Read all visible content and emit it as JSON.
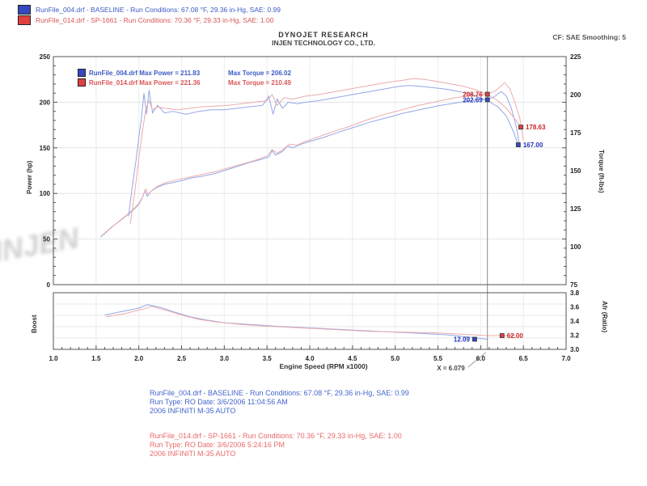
{
  "header": {
    "legend_top": [
      {
        "color": "#3448c0",
        "label": "RunFile_004.drf - BASELINE  -  Run Conditions: 67.08 °F, 29.36 in-Hg, SAE: 0.99"
      },
      {
        "color": "#e04040",
        "label": "RunFile_014.drf - SP-1661  -  Run Conditions: 70.36 °F, 29.33 in-Hg, SAE: 1.00"
      }
    ],
    "title1": "DYNOJET RESEARCH",
    "title2": "INJEN TECHNOLOGY CO., LTD.",
    "right": "CF: SAE   Smoothing: 5"
  },
  "chart_data": [
    {
      "type": "line",
      "title": "",
      "xlabel": "Engine Speed (RPM x1000)",
      "xlim": [
        1.0,
        7.0
      ],
      "x_ticks": [
        "1.0",
        "1.5",
        "2.0",
        "2.5",
        "3.0",
        "3.5",
        "4.0",
        "4.5",
        "5.0",
        "5.5",
        "6.0",
        "6.5",
        "7.0"
      ],
      "left_axis": {
        "label": "Power (hp)",
        "lim": [
          0,
          250
        ],
        "ticks": [
          250,
          200,
          150,
          100,
          50,
          0
        ]
      },
      "right_axis": {
        "label": "Torque (ft-lbs)",
        "lim": [
          75,
          225
        ],
        "ticks": [
          225,
          200,
          175,
          150,
          125,
          100,
          75
        ]
      },
      "grid": true,
      "legend_position": "top-left",
      "legend": [
        {
          "color": "#3448c0",
          "text1": "RunFile_004.drf Max Power = 211.83",
          "text2": "Max Torque = 206.02",
          "max_power": 211.83,
          "max_torque": 206.02,
          "tone": "blue"
        },
        {
          "color": "#e04040",
          "text1": "RunFile_014.drf Max Power = 221.36",
          "text2": "Max Torque = 210.49",
          "max_power": 221.36,
          "max_torque": 210.49,
          "tone": "red"
        }
      ],
      "cursor": {
        "x": 6.079,
        "label": "X = 6.079"
      },
      "cursor_values": [
        {
          "label": "208.76",
          "value": 208.76,
          "axis": "power",
          "color": "#cc2222",
          "fill": "#e04040"
        },
        {
          "label": "202.69",
          "value": 202.69,
          "axis": "power",
          "color": "#2233bb",
          "fill": "#3448c0"
        }
      ],
      "end_values": [
        {
          "label": "178.63",
          "value": 178.63,
          "rpm": 6.47,
          "axis": "torque",
          "color": "#cc2222",
          "fill": "#e04040"
        },
        {
          "label": "167.00",
          "value": 167.0,
          "rpm": 6.44,
          "axis": "torque",
          "color": "#2233bb",
          "fill": "#3448c0"
        }
      ],
      "series": [
        {
          "name": "power-baseline",
          "axis": "power",
          "color": "#93a7e7",
          "points": [
            [
              1.55,
              52
            ],
            [
              1.62,
              58
            ],
            [
              1.68,
              63
            ],
            [
              1.75,
              68
            ],
            [
              1.82,
              73
            ],
            [
              1.9,
              79
            ],
            [
              1.96,
              84
            ],
            [
              2.0,
              88
            ],
            [
              2.04,
              95
            ],
            [
              2.07,
              103
            ],
            [
              2.1,
              97
            ],
            [
              2.14,
              102
            ],
            [
              2.2,
              106
            ],
            [
              2.3,
              110
            ],
            [
              2.4,
              112
            ],
            [
              2.5,
              114
            ],
            [
              2.62,
              117
            ],
            [
              2.75,
              119
            ],
            [
              2.9,
              122
            ],
            [
              3.0,
              125
            ],
            [
              3.1,
              128
            ],
            [
              3.2,
              131
            ],
            [
              3.3,
              134
            ],
            [
              3.42,
              137
            ],
            [
              3.52,
              140
            ],
            [
              3.56,
              147
            ],
            [
              3.6,
              142
            ],
            [
              3.68,
              146
            ],
            [
              3.74,
              152
            ],
            [
              3.8,
              150
            ],
            [
              3.9,
              154
            ],
            [
              4.0,
              157
            ],
            [
              4.15,
              161
            ],
            [
              4.3,
              166
            ],
            [
              4.5,
              172
            ],
            [
              4.7,
              178
            ],
            [
              4.9,
              183
            ],
            [
              5.1,
              188
            ],
            [
              5.3,
              192
            ],
            [
              5.5,
              196
            ],
            [
              5.7,
              199
            ],
            [
              5.9,
              202
            ],
            [
              6.0,
              203
            ],
            [
              6.079,
              202.7
            ],
            [
              6.16,
              206
            ],
            [
              6.24,
              211.8
            ],
            [
              6.3,
              207
            ],
            [
              6.36,
              193
            ],
            [
              6.42,
              172
            ],
            [
              6.46,
              150
            ]
          ]
        },
        {
          "name": "power-sp1661",
          "axis": "power",
          "color": "#ecabab",
          "points": [
            [
              1.58,
              54
            ],
            [
              1.65,
              60
            ],
            [
              1.72,
              66
            ],
            [
              1.8,
              72
            ],
            [
              1.88,
              78
            ],
            [
              1.95,
              84
            ],
            [
              2.0,
              89
            ],
            [
              2.05,
              97
            ],
            [
              2.08,
              105
            ],
            [
              2.11,
              99
            ],
            [
              2.16,
              104
            ],
            [
              2.22,
              108
            ],
            [
              2.32,
              112
            ],
            [
              2.45,
              115
            ],
            [
              2.6,
              118
            ],
            [
              2.75,
              121
            ],
            [
              2.9,
              124
            ],
            [
              3.05,
              128
            ],
            [
              3.2,
              132
            ],
            [
              3.35,
              136
            ],
            [
              3.5,
              141
            ],
            [
              3.56,
              148
            ],
            [
              3.62,
              144
            ],
            [
              3.7,
              149
            ],
            [
              3.76,
              154
            ],
            [
              3.85,
              153
            ],
            [
              3.95,
              157
            ],
            [
              4.1,
              162
            ],
            [
              4.25,
              167
            ],
            [
              4.45,
              173
            ],
            [
              4.65,
              180
            ],
            [
              4.85,
              186
            ],
            [
              5.05,
              191
            ],
            [
              5.25,
              196
            ],
            [
              5.45,
              200
            ],
            [
              5.65,
              204
            ],
            [
              5.85,
              207
            ],
            [
              6.0,
              208
            ],
            [
              6.079,
              208.8
            ],
            [
              6.18,
              213
            ],
            [
              6.28,
              221.4
            ],
            [
              6.34,
              215
            ],
            [
              6.4,
              200
            ],
            [
              6.46,
              182
            ],
            [
              6.5,
              158
            ]
          ]
        },
        {
          "name": "torque-baseline",
          "axis": "torque",
          "color": "#93a7e7",
          "points": [
            [
              1.88,
              120
            ],
            [
              1.92,
              138
            ],
            [
              1.97,
              158
            ],
            [
              2.0,
              172
            ],
            [
              2.03,
              184
            ],
            [
              2.06,
              201
            ],
            [
              2.09,
              187
            ],
            [
              2.12,
              203
            ],
            [
              2.16,
              188
            ],
            [
              2.22,
              193
            ],
            [
              2.3,
              188
            ],
            [
              2.4,
              189
            ],
            [
              2.55,
              187
            ],
            [
              2.7,
              189
            ],
            [
              2.85,
              190
            ],
            [
              3.0,
              190
            ],
            [
              3.15,
              191
            ],
            [
              3.3,
              192
            ],
            [
              3.45,
              193
            ],
            [
              3.52,
              199
            ],
            [
              3.57,
              187
            ],
            [
              3.62,
              197
            ],
            [
              3.68,
              191
            ],
            [
              3.75,
              195
            ],
            [
              3.85,
              194
            ],
            [
              3.95,
              195
            ],
            [
              4.1,
              196
            ],
            [
              4.3,
              198
            ],
            [
              4.5,
              200
            ],
            [
              4.7,
              202
            ],
            [
              4.9,
              204
            ],
            [
              5.05,
              205.5
            ],
            [
              5.15,
              206
            ],
            [
              5.3,
              205.5
            ],
            [
              5.45,
              204.5
            ],
            [
              5.6,
              203.5
            ],
            [
              5.75,
              202
            ],
            [
              5.9,
              200
            ],
            [
              6.079,
              196
            ],
            [
              6.2,
              192
            ],
            [
              6.3,
              186
            ],
            [
              6.38,
              176
            ],
            [
              6.44,
              167
            ]
          ]
        },
        {
          "name": "torque-sp1661",
          "axis": "torque",
          "color": "#ecabab",
          "points": [
            [
              1.9,
              115
            ],
            [
              1.95,
              135
            ],
            [
              2.0,
              158
            ],
            [
              2.04,
              175
            ],
            [
              2.08,
              190
            ],
            [
              2.12,
              196
            ],
            [
              2.16,
              190
            ],
            [
              2.22,
              192
            ],
            [
              2.3,
              191
            ],
            [
              2.45,
              190
            ],
            [
              2.6,
              191
            ],
            [
              2.75,
              192
            ],
            [
              2.9,
              192.5
            ],
            [
              3.05,
              193
            ],
            [
              3.2,
              194
            ],
            [
              3.35,
              195
            ],
            [
              3.5,
              196
            ],
            [
              3.56,
              200
            ],
            [
              3.62,
              193
            ],
            [
              3.7,
              198
            ],
            [
              3.8,
              197
            ],
            [
              3.95,
              199
            ],
            [
              4.1,
              200
            ],
            [
              4.3,
              202
            ],
            [
              4.5,
              204
            ],
            [
              4.7,
              206
            ],
            [
              4.9,
              208
            ],
            [
              5.1,
              209.5
            ],
            [
              5.2,
              210.5
            ],
            [
              5.35,
              210
            ],
            [
              5.5,
              208.5
            ],
            [
              5.65,
              207
            ],
            [
              5.8,
              205.5
            ],
            [
              5.95,
              203
            ],
            [
              6.079,
              200
            ],
            [
              6.2,
              196
            ],
            [
              6.3,
              191
            ],
            [
              6.4,
              184
            ],
            [
              6.47,
              178.6
            ]
          ]
        }
      ]
    },
    {
      "type": "line",
      "left_label": "Boost",
      "right_label": "Afr (Ratio)",
      "right_ticks": [
        "3.8",
        "3.6",
        "3.4",
        "3.2",
        "3.0"
      ],
      "lim": [
        11.5,
        14.8
      ],
      "labels": [
        {
          "label": "12.09",
          "value": 12.09,
          "rpm": 5.93,
          "side": "left",
          "color": "#2233bb",
          "fill": "#3448c0"
        },
        {
          "label": "62.00",
          "value": 12.3,
          "rpm": 6.25,
          "side": "right",
          "color": "#cc2222",
          "fill": "#e04040"
        }
      ],
      "series": [
        {
          "name": "afr-baseline",
          "color": "#93a7e7",
          "points": [
            [
              1.6,
              13.5
            ],
            [
              1.8,
              13.7
            ],
            [
              2.0,
              13.9
            ],
            [
              2.1,
              14.1
            ],
            [
              2.25,
              13.95
            ],
            [
              2.4,
              13.7
            ],
            [
              2.6,
              13.4
            ],
            [
              2.8,
              13.2
            ],
            [
              3.0,
              13.05
            ],
            [
              3.3,
              12.95
            ],
            [
              3.6,
              12.85
            ],
            [
              4.0,
              12.75
            ],
            [
              4.4,
              12.65
            ],
            [
              4.8,
              12.55
            ],
            [
              5.2,
              12.45
            ],
            [
              5.6,
              12.35
            ],
            [
              5.9,
              12.2
            ],
            [
              6.079,
              12.09
            ]
          ]
        },
        {
          "name": "afr-sp1661",
          "color": "#ecabab",
          "points": [
            [
              1.62,
              13.4
            ],
            [
              1.85,
              13.6
            ],
            [
              2.05,
              13.85
            ],
            [
              2.15,
              14.0
            ],
            [
              2.3,
              13.8
            ],
            [
              2.5,
              13.5
            ],
            [
              2.7,
              13.25
            ],
            [
              2.9,
              13.1
            ],
            [
              3.2,
              12.95
            ],
            [
              3.5,
              12.85
            ],
            [
              3.9,
              12.75
            ],
            [
              4.3,
              12.65
            ],
            [
              4.7,
              12.55
            ],
            [
              5.1,
              12.5
            ],
            [
              5.5,
              12.45
            ],
            [
              5.9,
              12.35
            ],
            [
              6.079,
              12.3
            ],
            [
              6.25,
              12.3
            ],
            [
              6.4,
              12.32
            ]
          ]
        }
      ]
    }
  ],
  "footer": {
    "blue_lines": [
      "RunFile_004.drf - BASELINE  -  Run Conditions: 67.08 °F, 29.36 in-Hg, SAE: 0.99",
      "Run Type: RO  Date: 3/6/2006 11:04:56 AM",
      "2006 INFINITI M-35 AUTO"
    ],
    "red_lines": [
      "RunFile_014.drf - SP-1661  -  Run Conditions: 70.36 °F, 29.33 in-Hg, SAE: 1.00",
      "Run Type: RO  Date: 3/6/2006 5:24:16 PM",
      "2006 INFINITI M-35 AUTO"
    ]
  },
  "watermark": "INJEN"
}
